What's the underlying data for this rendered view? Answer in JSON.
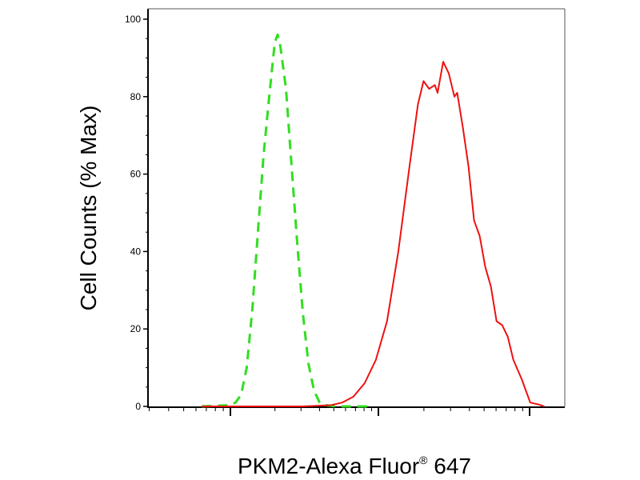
{
  "chart_data": {
    "type": "line",
    "xlabel": "PKM2-Alexa Fluor",
    "xlabel_sup": "®",
    "xlabel_suffix": " 647",
    "ylabel": "Cell Counts (% Max)",
    "xscale": "log",
    "ylim": [
      0,
      100
    ],
    "yticks": [
      "0",
      "20",
      "40",
      "60",
      "80",
      "100"
    ],
    "grid": false,
    "legend": "none",
    "series": [
      {
        "color": "#33dd22",
        "style": "dashed",
        "points": [
          [
            1.0,
            0
          ],
          [
            1.5,
            0.3
          ],
          [
            1.6,
            1
          ],
          [
            1.7,
            3
          ],
          [
            1.8,
            10
          ],
          [
            1.9,
            25
          ],
          [
            2.0,
            45
          ],
          [
            2.1,
            65
          ],
          [
            2.2,
            80
          ],
          [
            2.3,
            94
          ],
          [
            2.35,
            96
          ],
          [
            2.4,
            93
          ],
          [
            2.5,
            82
          ],
          [
            2.6,
            62
          ],
          [
            2.7,
            42
          ],
          [
            2.8,
            24
          ],
          [
            2.9,
            11
          ],
          [
            3.0,
            4
          ],
          [
            3.1,
            1
          ],
          [
            3.2,
            0.3
          ],
          [
            3.4,
            0
          ],
          [
            4.0,
            0
          ]
        ]
      },
      {
        "color": "#ee1111",
        "style": "solid",
        "points": [
          [
            1.0,
            0
          ],
          [
            2.8,
            0
          ],
          [
            3.3,
            0.3
          ],
          [
            3.5,
            1
          ],
          [
            3.7,
            2.5
          ],
          [
            3.9,
            6
          ],
          [
            4.1,
            12
          ],
          [
            4.3,
            22
          ],
          [
            4.5,
            40
          ],
          [
            4.7,
            62
          ],
          [
            4.85,
            78
          ],
          [
            4.95,
            84
          ],
          [
            5.05,
            82
          ],
          [
            5.15,
            83
          ],
          [
            5.2,
            81
          ],
          [
            5.3,
            89
          ],
          [
            5.4,
            86
          ],
          [
            5.5,
            80
          ],
          [
            5.55,
            81
          ],
          [
            5.65,
            72
          ],
          [
            5.75,
            62
          ],
          [
            5.85,
            48
          ],
          [
            5.95,
            44
          ],
          [
            6.05,
            36
          ],
          [
            6.15,
            31
          ],
          [
            6.25,
            22
          ],
          [
            6.35,
            21
          ],
          [
            6.45,
            18
          ],
          [
            6.55,
            12
          ],
          [
            6.7,
            7
          ],
          [
            6.85,
            1
          ],
          [
            7.0,
            0.5
          ],
          [
            7.1,
            0
          ]
        ]
      }
    ]
  }
}
